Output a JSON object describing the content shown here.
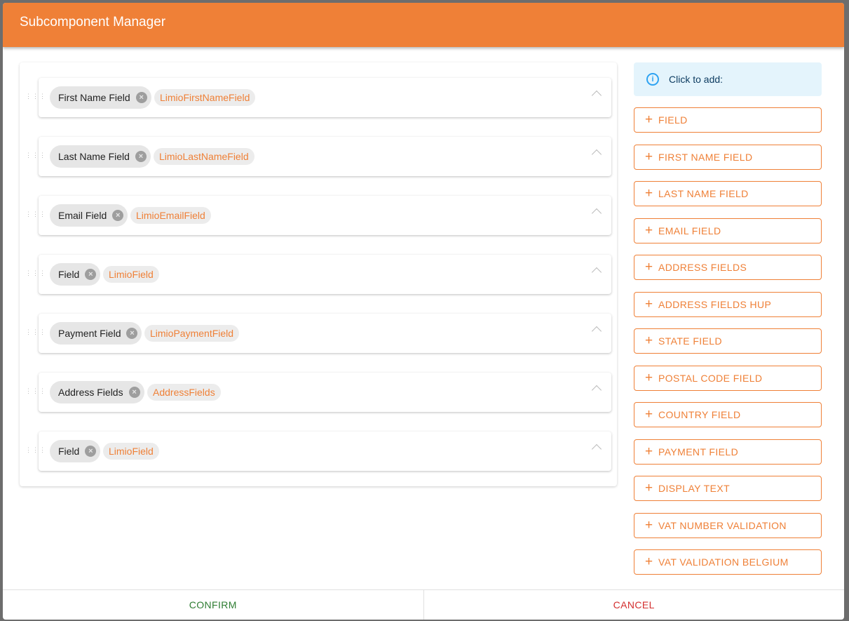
{
  "title": "Subcomponent Manager",
  "components": [
    {
      "label": "First Name Field",
      "type": "LimioFirstNameField"
    },
    {
      "label": "Last Name Field",
      "type": "LimioLastNameField"
    },
    {
      "label": "Email Field",
      "type": "LimioEmailField"
    },
    {
      "label": "Field",
      "type": "LimioField"
    },
    {
      "label": "Payment Field",
      "type": "LimioPaymentField"
    },
    {
      "label": "Address Fields",
      "type": "AddressFields"
    },
    {
      "label": "Field",
      "type": "LimioField"
    }
  ],
  "info": {
    "text": "Click to add:",
    "icon": "info-icon"
  },
  "add_buttons": [
    "FIELD",
    "FIRST NAME FIELD",
    "LAST NAME FIELD",
    "EMAIL FIELD",
    "ADDRESS FIELDS",
    "ADDRESS FIELDS HUP",
    "STATE FIELD",
    "POSTAL CODE FIELD",
    "COUNTRY FIELD",
    "PAYMENT FIELD",
    "DISPLAY TEXT",
    "VAT NUMBER VALIDATION",
    "VAT VALIDATION BELGIUM"
  ],
  "footer": {
    "confirm": "CONFIRM",
    "cancel": "CANCEL"
  },
  "colors": {
    "accent": "#ef8037",
    "confirm": "#2e7d32",
    "cancel": "#d32f2f"
  }
}
